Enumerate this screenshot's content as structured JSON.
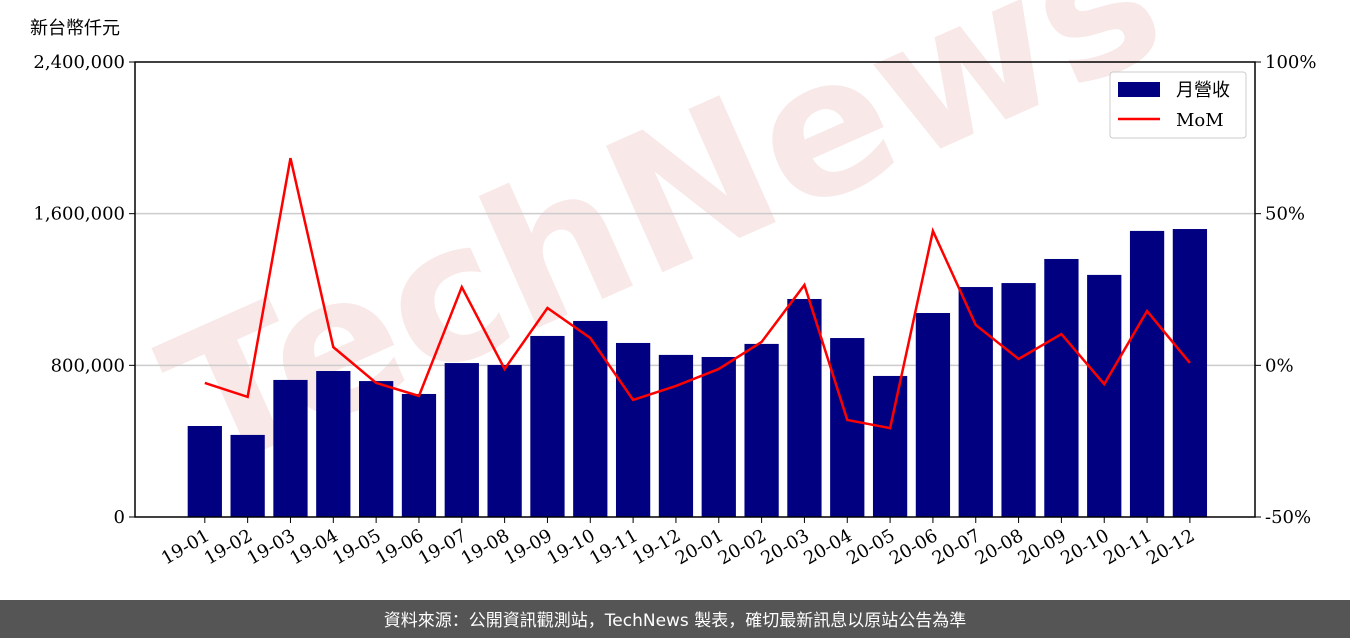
{
  "chart_data": {
    "type": "bar_line",
    "y_label": "新台幣仟元",
    "categories": [
      "19-01",
      "19-02",
      "19-03",
      "19-04",
      "19-05",
      "19-06",
      "19-07",
      "19-08",
      "19-09",
      "19-10",
      "19-11",
      "19-12",
      "20-01",
      "20-02",
      "20-03",
      "20-04",
      "20-05",
      "20-06",
      "20-07",
      "20-08",
      "20-09",
      "20-10",
      "20-11",
      "20-12"
    ],
    "series": [
      {
        "name": "月營收",
        "color": "#000080",
        "type": "bar",
        "values": [
          480000,
          433000,
          723000,
          770000,
          717000,
          649000,
          812000,
          802000,
          955000,
          1034000,
          918000,
          855000,
          844000,
          913000,
          1150000,
          944000,
          744000,
          1076000,
          1213000,
          1234000,
          1361000,
          1277000,
          1509000,
          1519000
        ]
      },
      {
        "name": "MoM",
        "color": "#ff0000",
        "type": "line",
        "axis": "y2",
        "values": [
          -5.8,
          -10.4,
          68.3,
          6.0,
          -5.8,
          -10.1,
          25.8,
          -1.2,
          18.9,
          9.0,
          -11.4,
          -6.8,
          -1.2,
          7.7,
          26.5,
          -18.0,
          -20.7,
          44.3,
          13.3,
          2.1,
          10.3,
          -6.2,
          17.9,
          0.8
        ]
      }
    ],
    "ylim": [
      0,
      2400000
    ],
    "yticks": [
      0,
      {
        "value": 800000,
        "label": "800,000"
      },
      {
        "value": 1600000,
        "label": "1,600,000"
      },
      {
        "value": 2400000,
        "label": "2,400,000"
      }
    ],
    "y2lim": [
      -50,
      100
    ],
    "y2ticks": [
      {
        "value": -50,
        "label": "-50%"
      },
      {
        "value": 0,
        "label": "0%"
      },
      {
        "value": 50,
        "label": "50%"
      },
      {
        "value": 100,
        "label": "100%"
      }
    ],
    "grid": true,
    "legend": "upper right",
    "watermark": "TechNews"
  },
  "footer": "資料來源：公開資訊觀測站，TechNews 製表，確切最新訊息以原站公告為準"
}
